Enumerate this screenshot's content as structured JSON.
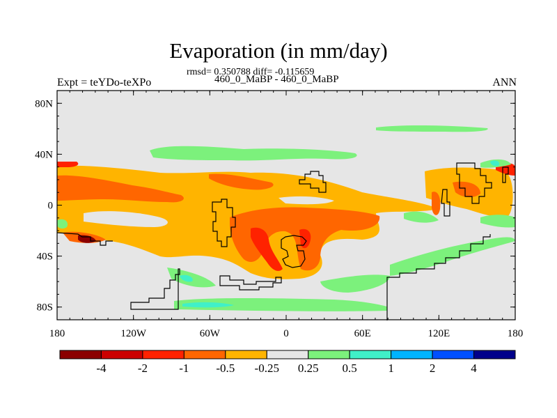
{
  "header": {
    "title": "Evaporation (in mm/day)",
    "stats": "rmsd= 0.350788 diff= -0.115659",
    "period": "460_0_MaBP - 460_0_MaBP",
    "experiment": "Expt = teYDo-teXPo",
    "season": "ANN"
  },
  "map": {
    "lat_ticks": [
      "80N",
      "40N",
      "0",
      "40S",
      "80S"
    ],
    "lat_values": [
      80,
      40,
      0,
      -40,
      -80
    ],
    "lon_ticks": [
      "180",
      "120W",
      "60W",
      "0",
      "60E",
      "120E",
      "180"
    ],
    "lon_values": [
      -180,
      -120,
      -60,
      0,
      60,
      120,
      180
    ],
    "lat_range": [
      -90,
      90
    ],
    "lon_range": [
      -180,
      180
    ],
    "background_color": "#e6e6e6"
  },
  "colorbar": {
    "colors": [
      "#8b0000",
      "#cc0000",
      "#ff2200",
      "#ff6600",
      "#ffb400",
      "#e6e6e6",
      "#7cf17c",
      "#40f0c8",
      "#00b4ff",
      "#0050ff",
      "#00008b"
    ],
    "labels": [
      "-4",
      "-2",
      "-1",
      "-0.5",
      "-0.25",
      "0.25",
      "0.5",
      "1",
      "2",
      "4"
    ]
  },
  "regions": [
    {
      "name": "north-pacific-positive-band",
      "level": "0.25 to 0.5",
      "color": "#7cf17c"
    },
    {
      "name": "equatorial-pacific-negative-band",
      "level": "-1 to -0.5",
      "color": "#ff6600"
    },
    {
      "name": "tropical-negative-belt",
      "level": "-0.5 to -0.25",
      "color": "#ffb400"
    },
    {
      "name": "south-atlantic-strong-negative",
      "level": "-2 to -1",
      "color": "#ff2200"
    },
    {
      "name": "southern-ocean-positive-band",
      "level": "0.25 to 0.5",
      "color": "#7cf17c"
    },
    {
      "name": "antarctic-coastal-positive",
      "level": "0.5 to 1",
      "color": "#40f0c8"
    }
  ]
}
